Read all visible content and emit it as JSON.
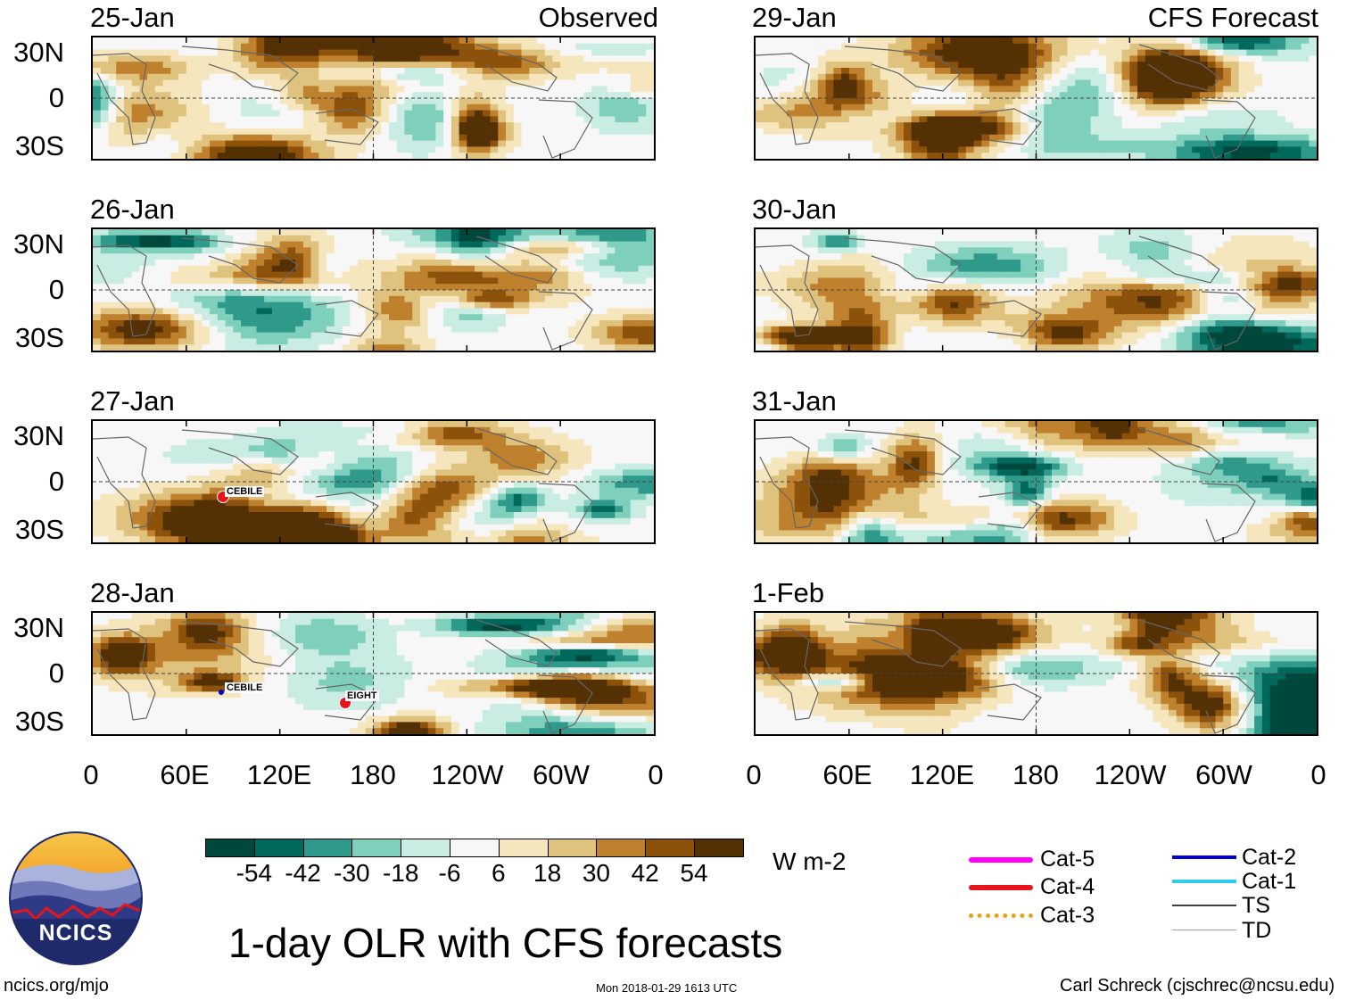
{
  "chart_data": {
    "type": "heatmap",
    "title": "1-day OLR with CFS forecasts",
    "units": "W m-2",
    "columns": [
      {
        "header": "Observed",
        "dates": [
          "25-Jan",
          "26-Jan",
          "27-Jan",
          "28-Jan"
        ]
      },
      {
        "header": "CFS Forecast",
        "dates": [
          "29-Jan",
          "30-Jan",
          "31-Jan",
          "1-Feb"
        ]
      }
    ],
    "lat_ticks": [
      "30N",
      "0",
      "30S"
    ],
    "lon_ticks": [
      "0",
      "60E",
      "120E",
      "180",
      "120W",
      "60W",
      "0"
    ],
    "lat_range": [
      -40,
      40
    ],
    "lon_range": [
      0,
      360
    ],
    "colorbar_levels": [
      -54,
      -42,
      -30,
      -18,
      -6,
      6,
      18,
      30,
      42,
      54
    ],
    "colorbar_labels": [
      "-54",
      "-42",
      "-30",
      "-18",
      "-6",
      "6",
      "18",
      "30",
      "42",
      "54"
    ],
    "colorbar_colors": [
      "#00473c",
      "#00695c",
      "#2f9a8c",
      "#7fcfbd",
      "#c9ece3",
      "#f7f7f7",
      "#f6e6bd",
      "#dfc27d",
      "#bf812d",
      "#8c510a",
      "#543005"
    ],
    "storms": [
      {
        "name": "CEBILE",
        "date": "27-Jan",
        "lon": 85,
        "lat": -13,
        "category": "Cat-4"
      },
      {
        "name": "CEBILE",
        "date": "28-Jan",
        "lon": 84,
        "lat": -13,
        "category": "Cat-2"
      },
      {
        "name": "EIGHT",
        "date": "28-Jan",
        "lon": 160,
        "lat": -19,
        "category": "Cat-4"
      }
    ]
  },
  "legend": [
    {
      "label": "Cat-5",
      "color": "#ff00ff"
    },
    {
      "label": "Cat-4",
      "color": "#e8141b"
    },
    {
      "label": "Cat-3",
      "color": "#e8a317"
    },
    {
      "label": "Cat-2",
      "color": "#0000d6"
    },
    {
      "label": "Cat-1",
      "color": "#33ccee"
    },
    {
      "label": "TS",
      "color": "#404040"
    },
    {
      "label": "TD",
      "color": "#a0a0a0"
    }
  ],
  "logo_text": "NCICS",
  "footer": {
    "left": "ncics.org/mjo",
    "center": "Mon 2018-01-29 1613 UTC",
    "right": "Carl Schreck (cjschrec@ncsu.edu)"
  }
}
